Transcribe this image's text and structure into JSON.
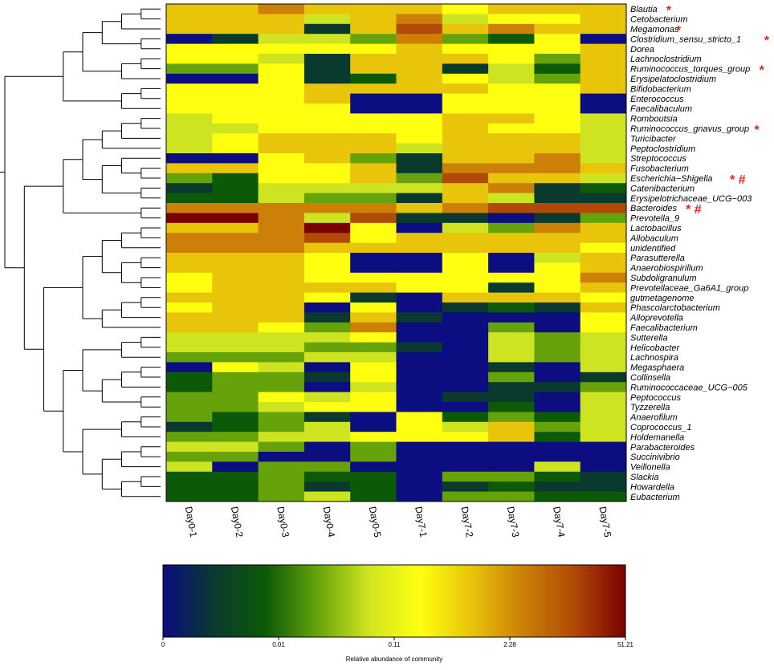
{
  "chart_data": {
    "type": "heatmap",
    "title": "",
    "colorbar_label": "Relative abundance of community",
    "colorbar_ticks": [
      "0",
      "0.01",
      "0.11",
      "2.28",
      "51.21"
    ],
    "colorscale": [
      "#0b0d80",
      "#0a3a2e",
      "#0c5a08",
      "#66a30a",
      "#cfe420",
      "#ffff10",
      "#e8c40a",
      "#cc8008",
      "#b04a06",
      "#7a0000"
    ],
    "samples": [
      "Day0-1",
      "Day0-2",
      "Day0-3",
      "Day0-4",
      "Day0-5",
      "Day7-1",
      "Day7-2",
      "Day7-3",
      "Day7-4",
      "Day7-5"
    ],
    "taxa": [
      "Blautia",
      "Cetobacterium",
      "Megamonas",
      "Clostridium_sensu_stricto_1",
      "Dorea",
      "Lachnoclostridium",
      "Ruminococcus_torques_group",
      "Erysipelatoclostridium",
      "Bifidobacterium",
      "Enterococcus",
      "Faecalibaculum",
      "Romboutsia",
      "Ruminococcus_gnavus_group",
      "Turicibacter",
      "Peptoclostridium",
      "Streptococcus",
      "Fusobacterium",
      "Escherichia−Shigella",
      "Catenibacterium",
      "Erysipelotrichaceae_UCG−003",
      "Bacteroides",
      "Prevotella_9",
      "Lactobacillus",
      "Allobaculum",
      "unidentified",
      "Parasutterella",
      "Anaerobiospirillum",
      "Subdoligranulum",
      "Prevotellaceae_Ga6A1_group",
      "gutmetagenome",
      "Phascolarctobacterium",
      "Alloprevotella",
      "Faecalibacterium",
      "Sutterella",
      "Helicobacter",
      "Lachnospira",
      "Megasphaera",
      "Collinsella",
      "Ruminococcaceae_UCG−005",
      "Peptococcus",
      "Tyzzerella",
      "Anaerofilum",
      "Coprococcus_1",
      "Holdemanella",
      "Parabacteroides",
      "Succinivibrio",
      "Veillonella",
      "Slackia",
      "Howardella",
      "Eubacterium"
    ],
    "markers": {
      "Blautia": "*",
      "Megamonas": "*",
      "Clostridium_sensu_stricto_1": "*",
      "Ruminococcus_torques_group": "*",
      "Ruminococcus_gnavus_group": "*",
      "Escherichia−Shigella": "* #",
      "Bacteroides": "* #"
    },
    "values": [
      [
        6,
        6,
        7,
        6,
        6,
        6,
        5,
        6,
        6,
        6
      ],
      [
        6,
        6,
        6,
        4,
        6,
        7,
        4,
        5,
        5,
        6
      ],
      [
        6,
        6,
        6,
        1,
        6,
        8,
        6,
        7,
        6,
        6
      ],
      [
        0,
        1,
        4,
        4,
        3,
        7,
        3,
        2,
        5,
        0
      ],
      [
        5,
        5,
        5,
        5,
        5,
        6,
        5,
        5,
        5,
        6
      ],
      [
        5,
        5,
        4,
        1,
        6,
        6,
        6,
        5,
        3,
        6
      ],
      [
        3,
        3,
        5,
        1,
        6,
        6,
        1,
        4,
        2,
        6
      ],
      [
        0,
        0,
        5,
        1,
        2,
        6,
        5,
        4,
        3,
        6
      ],
      [
        5,
        5,
        5,
        6,
        6,
        6,
        6,
        5,
        5,
        6
      ],
      [
        5,
        5,
        5,
        6,
        0,
        0,
        5,
        5,
        5,
        0
      ],
      [
        5,
        5,
        5,
        5,
        0,
        0,
        5,
        5,
        5,
        0
      ],
      [
        4,
        5,
        5,
        5,
        5,
        5,
        6,
        6,
        5,
        4
      ],
      [
        4,
        4,
        5,
        5,
        5,
        5,
        6,
        5,
        5,
        4
      ],
      [
        4,
        5,
        6,
        6,
        6,
        5,
        6,
        6,
        6,
        4
      ],
      [
        4,
        5,
        6,
        6,
        6,
        4,
        6,
        6,
        6,
        4
      ],
      [
        0,
        0,
        5,
        6,
        3,
        1,
        6,
        6,
        7,
        4
      ],
      [
        6,
        6,
        5,
        5,
        6,
        1,
        7,
        7,
        7,
        6
      ],
      [
        3,
        2,
        5,
        5,
        6,
        3,
        8,
        6,
        6,
        4
      ],
      [
        1,
        2,
        4,
        4,
        4,
        4,
        6,
        7,
        1,
        2
      ],
      [
        2,
        2,
        4,
        3,
        3,
        1,
        6,
        4,
        1,
        1
      ],
      [
        7,
        7,
        7,
        7,
        7,
        6,
        7,
        8,
        8,
        8
      ],
      [
        9,
        9,
        7,
        4,
        8,
        1,
        1,
        0,
        1,
        3
      ],
      [
        6,
        6,
        7,
        9,
        5,
        0,
        4,
        3,
        7,
        6
      ],
      [
        7,
        7,
        7,
        8,
        5,
        6,
        6,
        6,
        6,
        6
      ],
      [
        7,
        7,
        7,
        6,
        6,
        6,
        6,
        6,
        6,
        5
      ],
      [
        6,
        6,
        6,
        5,
        0,
        0,
        5,
        0,
        4,
        6
      ],
      [
        6,
        6,
        6,
        5,
        0,
        0,
        5,
        0,
        5,
        6
      ],
      [
        5,
        6,
        6,
        5,
        5,
        5,
        5,
        5,
        5,
        7
      ],
      [
        5,
        6,
        6,
        6,
        6,
        5,
        5,
        1,
        5,
        6
      ],
      [
        6,
        6,
        6,
        5,
        1,
        0,
        6,
        6,
        6,
        5
      ],
      [
        5,
        6,
        6,
        0,
        5,
        0,
        1,
        2,
        1,
        6
      ],
      [
        6,
        6,
        6,
        1,
        6,
        1,
        0,
        0,
        0,
        5
      ],
      [
        6,
        6,
        5,
        3,
        7,
        0,
        0,
        3,
        0,
        5
      ],
      [
        4,
        4,
        4,
        4,
        5,
        0,
        0,
        4,
        3,
        4
      ],
      [
        4,
        4,
        4,
        3,
        3,
        1,
        0,
        4,
        3,
        4
      ],
      [
        3,
        3,
        3,
        4,
        4,
        0,
        0,
        4,
        3,
        4
      ],
      [
        0,
        5,
        4,
        0,
        5,
        0,
        0,
        1,
        0,
        4
      ],
      [
        2,
        3,
        3,
        1,
        5,
        0,
        0,
        3,
        0,
        1
      ],
      [
        2,
        3,
        3,
        0,
        4,
        0,
        0,
        1,
        1,
        3
      ],
      [
        3,
        3,
        5,
        4,
        5,
        0,
        1,
        1,
        0,
        4
      ],
      [
        3,
        3,
        4,
        5,
        5,
        0,
        0,
        2,
        0,
        4
      ],
      [
        3,
        2,
        3,
        1,
        0,
        5,
        2,
        3,
        2,
        4
      ],
      [
        1,
        2,
        3,
        4,
        0,
        5,
        4,
        6,
        3,
        4
      ],
      [
        3,
        3,
        4,
        4,
        5,
        5,
        5,
        6,
        2,
        4
      ],
      [
        4,
        4,
        3,
        0,
        3,
        0,
        0,
        0,
        0,
        0
      ],
      [
        3,
        3,
        0,
        0,
        3,
        0,
        0,
        0,
        0,
        0
      ],
      [
        4,
        0,
        3,
        3,
        0,
        0,
        0,
        0,
        4,
        0
      ],
      [
        2,
        2,
        3,
        2,
        2,
        0,
        3,
        3,
        2,
        1
      ],
      [
        2,
        2,
        3,
        1,
        2,
        0,
        1,
        2,
        1,
        1
      ],
      [
        2,
        2,
        3,
        4,
        2,
        0,
        3,
        3,
        2,
        2
      ]
    ]
  }
}
